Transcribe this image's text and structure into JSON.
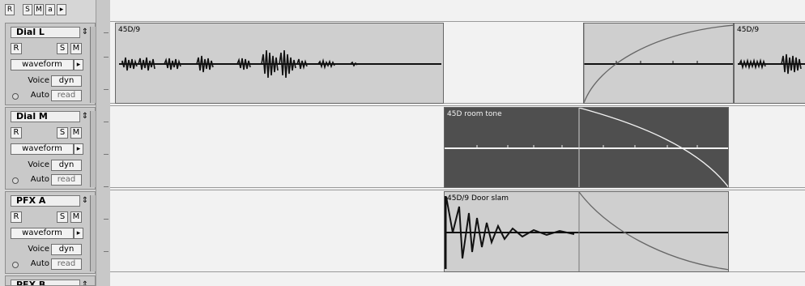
{
  "top_strip": {
    "r_label": "R",
    "s_label": "S",
    "m_label": "M",
    "a_label": "a",
    "arrow_label": "▸"
  },
  "tracks": [
    {
      "name": "Dial L",
      "r_label": "R",
      "s_label": "S",
      "m_label": "M",
      "view_label": "waveform",
      "arrow": "▸",
      "voice_label": "Voice",
      "voice_value": "dyn",
      "auto_label": "Auto",
      "auto_value": "read"
    },
    {
      "name": "Dial M",
      "r_label": "R",
      "s_label": "S",
      "m_label": "M",
      "view_label": "waveform",
      "arrow": "▸",
      "voice_label": "Voice",
      "voice_value": "dyn",
      "auto_label": "Auto",
      "auto_value": "read"
    },
    {
      "name": "PFX A",
      "r_label": "R",
      "s_label": "S",
      "m_label": "M",
      "view_label": "waveform",
      "arrow": "▸",
      "voice_label": "Voice",
      "voice_value": "dyn",
      "auto_label": "Auto",
      "auto_value": "read"
    },
    {
      "name": "PFX B"
    }
  ],
  "clips": {
    "dial_l_first": "45D/9",
    "dial_l_second": "45D/9",
    "dial_m_room_tone": "45D room tone",
    "pfx_a_door_slam": "45D/9 Door slam"
  },
  "spin_glyph": "⇕",
  "colors": {
    "clip_light": "#cfcfcf",
    "clip_dark": "#4f4f4f",
    "waveform": "#111111"
  }
}
